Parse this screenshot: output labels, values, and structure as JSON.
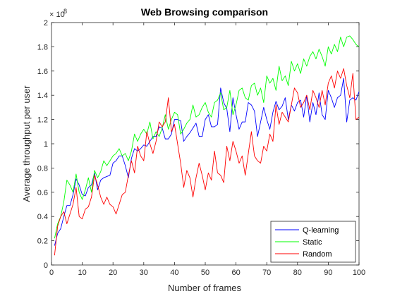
{
  "chart_data": {
    "type": "line",
    "title": "Web Browsing comparison",
    "xlabel": "Number of frames",
    "ylabel": "Average throughput per user",
    "exponent_base": "× 10",
    "exponent_power": "8",
    "xlim": [
      0,
      100
    ],
    "ylim": [
      0,
      2
    ],
    "xticks": [
      0,
      10,
      20,
      30,
      40,
      50,
      60,
      70,
      80,
      90,
      100
    ],
    "yticks": [
      0,
      0.2,
      0.4,
      0.6,
      0.8,
      1,
      1.2,
      1.4,
      1.6,
      1.8,
      2
    ],
    "ytick_labels": [
      "0",
      "0.2",
      "0.4",
      "0.6",
      "0.8",
      "1",
      "1.2",
      "1.4",
      "1.6",
      "1.8",
      "2"
    ],
    "grid": false,
    "legend_position": "bottom-right",
    "x": [
      1,
      2,
      3,
      4,
      5,
      6,
      7,
      8,
      9,
      10,
      11,
      12,
      13,
      14,
      15,
      16,
      17,
      18,
      19,
      20,
      21,
      22,
      23,
      24,
      25,
      26,
      27,
      28,
      29,
      30,
      31,
      32,
      33,
      34,
      35,
      36,
      37,
      38,
      39,
      40,
      41,
      42,
      43,
      44,
      45,
      46,
      47,
      48,
      49,
      50,
      51,
      52,
      53,
      54,
      55,
      56,
      57,
      58,
      59,
      60,
      61,
      62,
      63,
      64,
      65,
      66,
      67,
      68,
      69,
      70,
      71,
      72,
      73,
      74,
      75,
      76,
      77,
      78,
      79,
      80,
      81,
      82,
      83,
      84,
      85,
      86,
      87,
      88,
      89,
      90,
      91,
      92,
      93,
      94,
      95,
      96,
      97,
      98,
      99,
      100
    ],
    "series": [
      {
        "name": "Q-learning",
        "color": "#0000ff",
        "values": [
          0.16,
          0.26,
          0.3,
          0.4,
          0.49,
          0.49,
          0.58,
          0.71,
          0.66,
          0.58,
          0.57,
          0.64,
          0.66,
          0.76,
          0.62,
          0.7,
          0.72,
          0.73,
          0.74,
          0.84,
          0.86,
          0.9,
          0.9,
          0.82,
          0.72,
          0.88,
          0.96,
          0.94,
          0.96,
          0.99,
          0.98,
          1.02,
          1.06,
          1.06,
          1.14,
          1.13,
          1.04,
          1.04,
          1.08,
          1.2,
          1.2,
          1.19,
          1.02,
          1.06,
          1.09,
          1.13,
          1.17,
          1.06,
          1.06,
          1.2,
          1.24,
          1.14,
          1.14,
          1.16,
          1.46,
          1.34,
          1.29,
          1.1,
          1.38,
          1.24,
          1.12,
          1.18,
          1.18,
          1.34,
          1.32,
          1.27,
          1.06,
          1.18,
          1.3,
          1.2,
          1.12,
          1.26,
          1.35,
          1.28,
          1.31,
          1.38,
          1.2,
          1.32,
          1.27,
          1.34,
          1.36,
          1.22,
          1.4,
          1.18,
          1.34,
          1.24,
          1.42,
          1.24,
          1.2,
          1.44,
          1.38,
          1.3,
          1.38,
          1.4,
          1.54,
          1.18,
          1.36,
          1.38,
          1.36,
          1.43
        ]
      },
      {
        "name": "Static",
        "color": "#00ff00",
        "values": [
          0.22,
          0.34,
          0.4,
          0.52,
          0.7,
          0.66,
          0.6,
          0.75,
          0.6,
          0.54,
          0.62,
          0.72,
          0.6,
          0.78,
          0.72,
          0.77,
          0.86,
          0.82,
          0.86,
          0.9,
          0.92,
          0.96,
          0.9,
          0.92,
          0.86,
          0.94,
          1.08,
          1.02,
          1.08,
          1.12,
          1.08,
          1.18,
          1.04,
          1.1,
          1.06,
          1.13,
          1.24,
          1.12,
          1.2,
          1.26,
          1.24,
          1.08,
          1.12,
          1.17,
          1.2,
          1.32,
          1.22,
          1.24,
          1.3,
          1.34,
          1.26,
          1.22,
          1.34,
          1.36,
          1.42,
          1.28,
          1.3,
          1.44,
          1.24,
          1.32,
          1.44,
          1.46,
          1.38,
          1.36,
          1.48,
          1.5,
          1.4,
          1.46,
          1.34,
          1.56,
          1.5,
          1.54,
          1.44,
          1.64,
          1.52,
          1.56,
          1.48,
          1.68,
          1.6,
          1.66,
          1.58,
          1.7,
          1.64,
          1.72,
          1.76,
          1.7,
          1.78,
          1.72,
          1.64,
          1.8,
          1.74,
          1.82,
          1.76,
          1.88,
          1.8,
          1.88,
          1.89,
          1.86,
          1.82,
          1.8
        ]
      },
      {
        "name": "Random",
        "color": "#ff0000",
        "values": [
          0.08,
          0.32,
          0.4,
          0.44,
          0.34,
          0.42,
          0.5,
          0.64,
          0.4,
          0.38,
          0.46,
          0.48,
          0.56,
          0.74,
          0.66,
          0.56,
          0.5,
          0.56,
          0.5,
          0.48,
          0.42,
          0.5,
          0.58,
          0.6,
          0.74,
          0.86,
          0.76,
          0.98,
          0.9,
          0.86,
          1.1,
          1.0,
          0.92,
          1.02,
          1.18,
          1.14,
          1.18,
          1.38,
          1.1,
          1.16,
          1.0,
          0.84,
          0.64,
          0.78,
          0.72,
          0.56,
          0.72,
          0.84,
          0.74,
          0.62,
          0.76,
          0.7,
          0.94,
          0.76,
          0.74,
          0.68,
          0.98,
          0.86,
          1.02,
          0.94,
          0.84,
          0.9,
          0.74,
          0.92,
          1.1,
          0.9,
          0.86,
          0.84,
          0.98,
          0.94,
          1.08,
          1.02,
          1.32,
          1.16,
          1.26,
          1.22,
          1.18,
          1.32,
          1.46,
          1.42,
          1.3,
          1.34,
          1.4,
          1.28,
          1.44,
          1.38,
          1.3,
          1.44,
          1.32,
          1.5,
          1.56,
          1.46,
          1.6,
          1.54,
          1.62,
          1.48,
          1.38,
          1.58,
          1.2,
          1.22
        ]
      }
    ]
  }
}
